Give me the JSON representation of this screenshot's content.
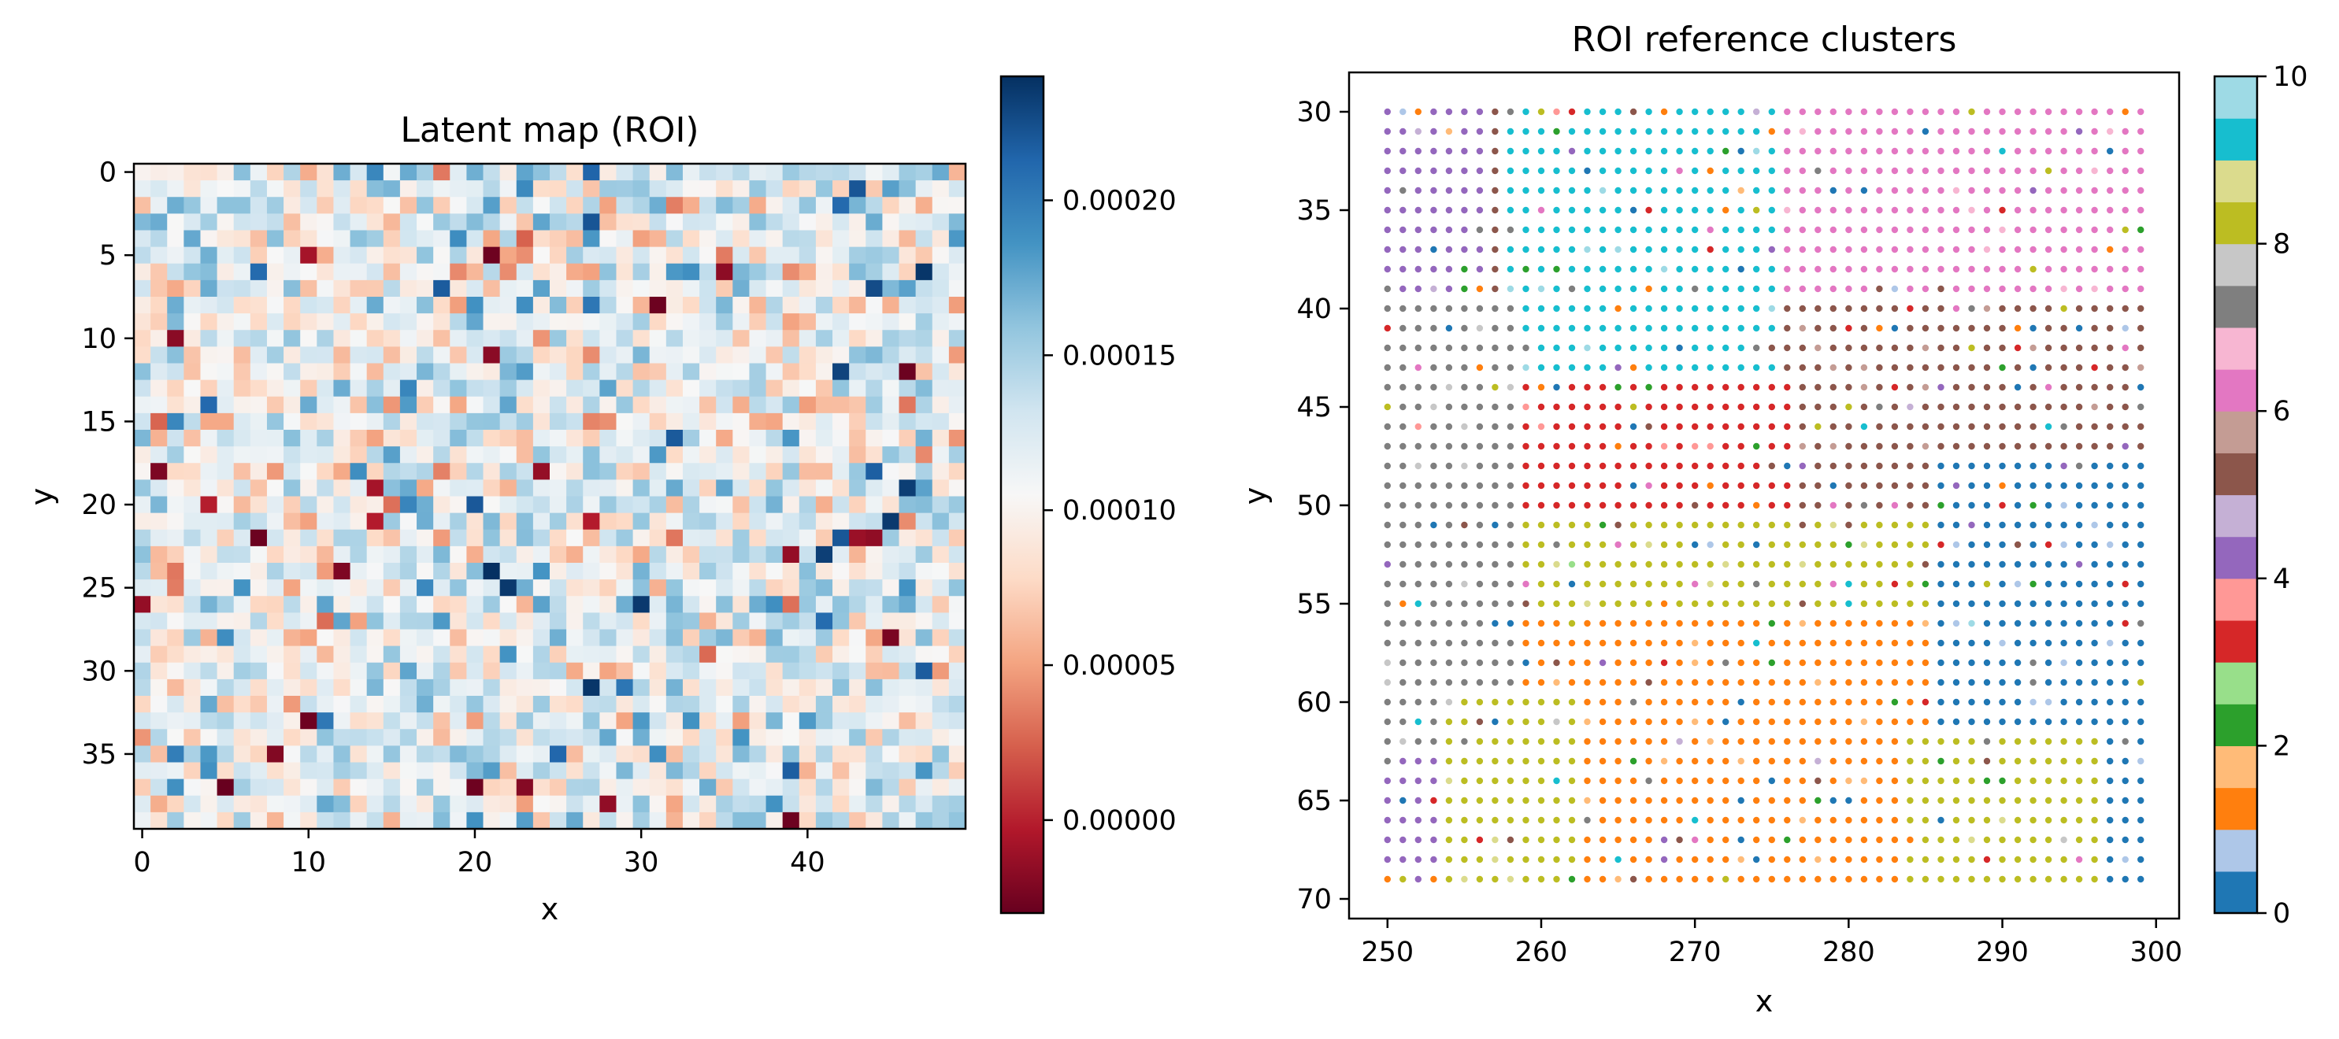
{
  "chart_data": [
    {
      "type": "heatmap",
      "title": "Latent map (ROI)",
      "xlabel": "x",
      "ylabel": "y",
      "x_range": [
        0,
        49
      ],
      "y_range": [
        0,
        39
      ],
      "grid_shape": [
        40,
        50
      ],
      "xticks": [
        "0",
        "10",
        "20",
        "30",
        "40"
      ],
      "yticks": [
        "0",
        "5",
        "10",
        "15",
        "20",
        "25",
        "30",
        "35"
      ],
      "colormap": "RdBu",
      "color_range": [
        -3e-05,
        0.00024
      ],
      "colorbar_ticks": [
        "0.00000",
        "0.00005",
        "0.00010",
        "0.00015",
        "0.00020"
      ],
      "seed": 7,
      "grid": false
    },
    {
      "type": "scatter",
      "title": "ROI reference clusters",
      "xlabel": "x",
      "ylabel": "y",
      "xlim": [
        247.5,
        301.5
      ],
      "ylim": [
        71,
        28
      ],
      "x_range": [
        250,
        299
      ],
      "y_range": [
        30,
        69
      ],
      "xticks": [
        "250",
        "260",
        "270",
        "280",
        "290",
        "300"
      ],
      "yticks": [
        "30",
        "35",
        "40",
        "45",
        "50",
        "55",
        "60",
        "65",
        "70"
      ],
      "colormap": "tab20",
      "color_range": [
        0,
        10
      ],
      "colorbar_ticks": [
        "0",
        "2",
        "4",
        "6",
        "8",
        "10"
      ],
      "palette": [
        "#1f77b4",
        "#aec7e8",
        "#ff7f0e",
        "#ffbb78",
        "#2ca02c",
        "#98df8a",
        "#d62728",
        "#ff9896",
        "#9467bd",
        "#c5b0d5",
        "#8c564b",
        "#c49c94",
        "#e377c2",
        "#f7b6d2",
        "#7f7f7f",
        "#c7c7c7",
        "#bcbd22",
        "#dbdb8d",
        "#17becf",
        "#9edae5"
      ],
      "regions": [
        {
          "cluster": 9,
          "x": [
            258,
            276
          ],
          "y": [
            30,
            48
          ]
        },
        {
          "cluster": 6,
          "x": [
            276,
            299
          ],
          "y": [
            30,
            40
          ]
        },
        {
          "cluster": 5,
          "x": [
            276,
            299
          ],
          "y": [
            40,
            56
          ]
        },
        {
          "cluster": 3,
          "x": [
            256,
            276
          ],
          "y": [
            44,
            52
          ]
        },
        {
          "cluster": 8,
          "x": [
            254,
            296
          ],
          "y": [
            51,
            58
          ]
        },
        {
          "cluster": 1,
          "x": [
            258,
            288
          ],
          "y": [
            56,
            69
          ]
        },
        {
          "cluster": 0,
          "x": [
            286,
            299
          ],
          "y": [
            48,
            69
          ]
        },
        {
          "cluster": 4,
          "x": [
            250,
            256
          ],
          "y": [
            30,
            69
          ]
        },
        {
          "cluster": 7,
          "x": [
            250,
            258
          ],
          "y": [
            40,
            62
          ]
        },
        {
          "cluster": 8,
          "x": [
            254,
            262
          ],
          "y": [
            60,
            69
          ]
        },
        {
          "cluster": 8,
          "x": [
            284,
            296
          ],
          "y": [
            62,
            69
          ]
        }
      ],
      "seed": 13,
      "grid": false
    }
  ]
}
